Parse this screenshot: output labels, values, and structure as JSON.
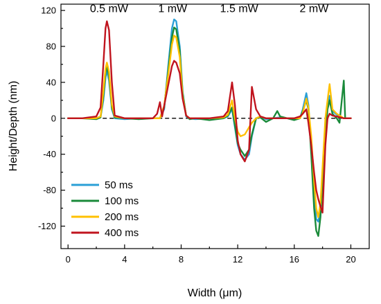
{
  "chart_data": {
    "type": "line",
    "title": "",
    "xlabel": "Width (μm)",
    "ylabel": "Height/Depth (nm)",
    "xlim": [
      -0.5,
      21.3
    ],
    "ylim": [
      -145,
      127
    ],
    "xticks": [
      0,
      4,
      8,
      12,
      16,
      20
    ],
    "xtick_labels": [
      "0",
      "4",
      "8",
      "12",
      "16",
      "20"
    ],
    "yticks": [
      120,
      80,
      40,
      0,
      -40,
      -80,
      -120
    ],
    "ytick_labels": [
      "120",
      "80",
      "40",
      "0",
      "-40",
      "-80",
      "-120"
    ],
    "grid": false,
    "legend_position": "bottom-left",
    "annotations": [
      {
        "text": "0.5 mW",
        "x": 2.9,
        "y": 118
      },
      {
        "text": "1 mW",
        "x": 7.4,
        "y": 118
      },
      {
        "text": "1.5 mW",
        "x": 12.1,
        "y": 118
      },
      {
        "text": "2 mW",
        "x": 17.4,
        "y": 118
      }
    ],
    "reference_line": {
      "y": 0,
      "style": "dashed",
      "color": "#000000",
      "x_range": [
        0,
        20
      ]
    },
    "series": [
      {
        "name": "50 ms",
        "color": "#2a9fd6",
        "points": [
          [
            0,
            0
          ],
          [
            1,
            0
          ],
          [
            2,
            0
          ],
          [
            2.3,
            2
          ],
          [
            2.5,
            20
          ],
          [
            2.65,
            45
          ],
          [
            2.75,
            53
          ],
          [
            2.9,
            42
          ],
          [
            3.1,
            10
          ],
          [
            3.3,
            0
          ],
          [
            4,
            -1
          ],
          [
            5,
            0
          ],
          [
            6,
            0
          ],
          [
            6.5,
            0
          ],
          [
            6.8,
            10
          ],
          [
            7.1,
            60
          ],
          [
            7.35,
            100
          ],
          [
            7.5,
            110
          ],
          [
            7.65,
            108
          ],
          [
            7.9,
            80
          ],
          [
            8.1,
            30
          ],
          [
            8.35,
            2
          ],
          [
            8.6,
            0
          ],
          [
            9,
            -1
          ],
          [
            10,
            0
          ],
          [
            11,
            0
          ],
          [
            11.3,
            2
          ],
          [
            11.6,
            10
          ],
          [
            11.8,
            -10
          ],
          [
            12,
            -30
          ],
          [
            12.2,
            -40
          ],
          [
            12.5,
            -46
          ],
          [
            12.8,
            -40
          ],
          [
            13,
            -20
          ],
          [
            13.3,
            0
          ],
          [
            13.6,
            2
          ],
          [
            14,
            -1
          ],
          [
            14.5,
            0
          ],
          [
            15,
            1
          ],
          [
            15.5,
            0
          ],
          [
            16,
            0
          ],
          [
            16.4,
            0
          ],
          [
            16.6,
            10
          ],
          [
            16.85,
            28
          ],
          [
            17,
            15
          ],
          [
            17.2,
            -30
          ],
          [
            17.4,
            -80
          ],
          [
            17.55,
            -112
          ],
          [
            17.7,
            -115
          ],
          [
            17.85,
            -100
          ],
          [
            18,
            -60
          ],
          [
            18.2,
            -10
          ],
          [
            18.35,
            15
          ],
          [
            18.5,
            25
          ],
          [
            18.7,
            8
          ],
          [
            19,
            4
          ],
          [
            19.5,
            0
          ],
          [
            20,
            0
          ]
        ]
      },
      {
        "name": "100 ms",
        "color": "#1a8a3a",
        "points": [
          [
            0,
            0
          ],
          [
            1,
            0
          ],
          [
            2,
            -1
          ],
          [
            2.3,
            1
          ],
          [
            2.5,
            25
          ],
          [
            2.65,
            50
          ],
          [
            2.75,
            58
          ],
          [
            2.9,
            47
          ],
          [
            3.1,
            12
          ],
          [
            3.3,
            1
          ],
          [
            4,
            0
          ],
          [
            5,
            -1
          ],
          [
            6,
            0
          ],
          [
            6.5,
            0
          ],
          [
            6.8,
            12
          ],
          [
            7.1,
            55
          ],
          [
            7.35,
            90
          ],
          [
            7.5,
            101
          ],
          [
            7.65,
            99
          ],
          [
            7.9,
            75
          ],
          [
            8.1,
            28
          ],
          [
            8.35,
            3
          ],
          [
            8.6,
            -1
          ],
          [
            9,
            0
          ],
          [
            10,
            -2
          ],
          [
            11,
            0
          ],
          [
            11.3,
            3
          ],
          [
            11.6,
            12
          ],
          [
            11.8,
            -8
          ],
          [
            12,
            -28
          ],
          [
            12.2,
            -35
          ],
          [
            12.5,
            -42
          ],
          [
            12.8,
            -35
          ],
          [
            13,
            -18
          ],
          [
            13.3,
            0
          ],
          [
            13.6,
            1
          ],
          [
            14,
            -4
          ],
          [
            14.5,
            0
          ],
          [
            14.8,
            8
          ],
          [
            15,
            2
          ],
          [
            15.5,
            0
          ],
          [
            16,
            -2
          ],
          [
            16.4,
            0
          ],
          [
            16.6,
            8
          ],
          [
            16.85,
            20
          ],
          [
            17,
            10
          ],
          [
            17.2,
            -40
          ],
          [
            17.4,
            -100
          ],
          [
            17.55,
            -125
          ],
          [
            17.7,
            -131
          ],
          [
            17.85,
            -110
          ],
          [
            18,
            -70
          ],
          [
            18.2,
            -20
          ],
          [
            18.35,
            10
          ],
          [
            18.5,
            20
          ],
          [
            18.7,
            5
          ],
          [
            19,
            0
          ],
          [
            19.2,
            -5
          ],
          [
            19.5,
            42
          ],
          [
            19.6,
            0
          ],
          [
            20,
            0
          ]
        ]
      },
      {
        "name": "200 ms",
        "color": "#ffc000",
        "points": [
          [
            0,
            0
          ],
          [
            1,
            0
          ],
          [
            2,
            0
          ],
          [
            2.3,
            2
          ],
          [
            2.5,
            30
          ],
          [
            2.65,
            55
          ],
          [
            2.75,
            62
          ],
          [
            2.9,
            52
          ],
          [
            3.1,
            15
          ],
          [
            3.3,
            2
          ],
          [
            4,
            0
          ],
          [
            5,
            0
          ],
          [
            6,
            0
          ],
          [
            6.5,
            0
          ],
          [
            6.8,
            14
          ],
          [
            7.1,
            50
          ],
          [
            7.35,
            82
          ],
          [
            7.5,
            92
          ],
          [
            7.65,
            90
          ],
          [
            7.9,
            68
          ],
          [
            8.1,
            25
          ],
          [
            8.35,
            3
          ],
          [
            8.6,
            0
          ],
          [
            9,
            0
          ],
          [
            10,
            0
          ],
          [
            11,
            1
          ],
          [
            11.3,
            4
          ],
          [
            11.6,
            20
          ],
          [
            11.8,
            0
          ],
          [
            12,
            -15
          ],
          [
            12.2,
            -20
          ],
          [
            12.5,
            -18
          ],
          [
            12.8,
            -10
          ],
          [
            13,
            -5
          ],
          [
            13.3,
            0
          ],
          [
            13.6,
            2
          ],
          [
            14,
            0
          ],
          [
            14.5,
            0
          ],
          [
            15,
            0
          ],
          [
            15.5,
            0
          ],
          [
            16,
            0
          ],
          [
            16.4,
            0
          ],
          [
            16.6,
            6
          ],
          [
            16.85,
            22
          ],
          [
            17,
            12
          ],
          [
            17.2,
            -20
          ],
          [
            17.4,
            -70
          ],
          [
            17.55,
            -100
          ],
          [
            17.7,
            -110
          ],
          [
            17.85,
            -95
          ],
          [
            18,
            -55
          ],
          [
            18.2,
            0
          ],
          [
            18.35,
            20
          ],
          [
            18.5,
            38
          ],
          [
            18.7,
            10
          ],
          [
            19,
            5
          ],
          [
            19.5,
            0
          ],
          [
            20,
            0
          ]
        ]
      },
      {
        "name": "400 ms",
        "color": "#c0141e",
        "points": [
          [
            0,
            0
          ],
          [
            1,
            0
          ],
          [
            2,
            2
          ],
          [
            2.3,
            12
          ],
          [
            2.5,
            60
          ],
          [
            2.65,
            100
          ],
          [
            2.75,
            108
          ],
          [
            2.9,
            98
          ],
          [
            3.1,
            40
          ],
          [
            3.3,
            3
          ],
          [
            4,
            0
          ],
          [
            5,
            0
          ],
          [
            6,
            0
          ],
          [
            6.3,
            5
          ],
          [
            6.5,
            18
          ],
          [
            6.65,
            2
          ],
          [
            6.8,
            14
          ],
          [
            7.1,
            38
          ],
          [
            7.35,
            58
          ],
          [
            7.5,
            64
          ],
          [
            7.65,
            62
          ],
          [
            7.9,
            50
          ],
          [
            8.1,
            22
          ],
          [
            8.35,
            3
          ],
          [
            8.6,
            0
          ],
          [
            9,
            0
          ],
          [
            10,
            0
          ],
          [
            11,
            2
          ],
          [
            11.3,
            8
          ],
          [
            11.6,
            40
          ],
          [
            11.8,
            15
          ],
          [
            12,
            -25
          ],
          [
            12.2,
            -40
          ],
          [
            12.5,
            -48
          ],
          [
            12.8,
            -35
          ],
          [
            13,
            35
          ],
          [
            13.3,
            10
          ],
          [
            13.6,
            2
          ],
          [
            14,
            0
          ],
          [
            14.5,
            0
          ],
          [
            15,
            0
          ],
          [
            15.5,
            0
          ],
          [
            16,
            0
          ],
          [
            16.4,
            2
          ],
          [
            16.6,
            5
          ],
          [
            16.85,
            10
          ],
          [
            17,
            -5
          ],
          [
            17.2,
            -30
          ],
          [
            17.4,
            -60
          ],
          [
            17.55,
            -80
          ],
          [
            17.7,
            -90
          ],
          [
            17.85,
            -98
          ],
          [
            18,
            -105
          ],
          [
            18.2,
            -30
          ],
          [
            18.35,
            0
          ],
          [
            18.5,
            5
          ],
          [
            18.7,
            3
          ],
          [
            19,
            2
          ],
          [
            19.5,
            0
          ],
          [
            20,
            0
          ]
        ]
      }
    ]
  }
}
